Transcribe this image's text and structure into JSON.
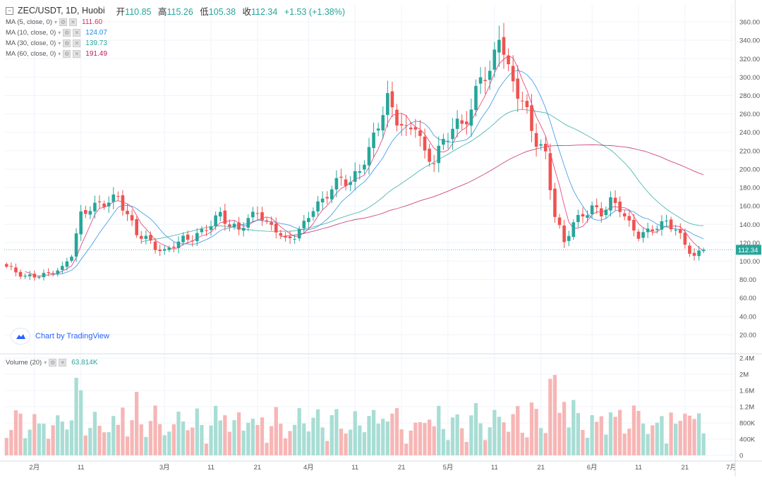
{
  "header": {
    "symbol": "ZEC/USDT, 1D, Huobi",
    "open_label": "开",
    "open": "110.85",
    "high_label": "高",
    "high": "115.26",
    "low_label": "低",
    "low": "105.38",
    "close_label": "收",
    "close": "112.34",
    "change": "+1.53 (+1.38%)"
  },
  "indicators": [
    {
      "label": "MA (5, close, 0)",
      "value": "111.60",
      "color": "#e91e63"
    },
    {
      "label": "MA (10, close, 0)",
      "value": "124.07",
      "color": "#1e88e5"
    },
    {
      "label": "MA (30, close, 0)",
      "value": "139.73",
      "color": "#26a69a"
    },
    {
      "label": "MA (60, close, 0)",
      "value": "191.49",
      "color": "#c2185b"
    }
  ],
  "volume_legend": {
    "label": "Volume (20)",
    "value": "63.814K",
    "color": "#26a69a"
  },
  "brand": {
    "text": "Chart by TradingView",
    "icon": "tradingview-cloud-icon"
  },
  "last_price_label": "112.34",
  "colors": {
    "up": "#26a69a",
    "down": "#ef5350",
    "up_volume": "#a8ddd4",
    "down_volume": "#f6b6b5",
    "last_price_bg": "#26a69a"
  },
  "chart_data": {
    "type": "candlestick",
    "price_axis": {
      "range": [
        10,
        370
      ],
      "ticks": [
        "360.00",
        "340.00",
        "320.00",
        "300.00",
        "280.00",
        "260.00",
        "240.00",
        "220.00",
        "200.00",
        "180.00",
        "160.00",
        "140.00",
        "120.00",
        "100.00",
        "80.00",
        "60.00",
        "40.00",
        "20.00"
      ]
    },
    "volume_axis": {
      "range": [
        0,
        2400000
      ],
      "ticks": [
        "2.4M",
        "2M",
        "1.6M",
        "1.2M",
        "800K",
        "400K",
        "0"
      ]
    },
    "x_axis_labels": [
      {
        "label": "2月",
        "day": 6
      },
      {
        "label": "11",
        "day": 16
      },
      {
        "label": "3月",
        "day": 34
      },
      {
        "label": "11",
        "day": 44
      },
      {
        "label": "21",
        "day": 54
      },
      {
        "label": "4月",
        "day": 65
      },
      {
        "label": "11",
        "day": 75
      },
      {
        "label": "21",
        "day": 85
      },
      {
        "label": "5月",
        "day": 95
      },
      {
        "label": "11",
        "day": 105
      },
      {
        "label": "21",
        "day": 115
      },
      {
        "label": "6月",
        "day": 126
      },
      {
        "label": "11",
        "day": 136
      },
      {
        "label": "21",
        "day": 146
      },
      {
        "label": "7月",
        "day": 156
      }
    ],
    "total_days": 157,
    "close_anchors": [
      [
        0,
        94
      ],
      [
        4,
        83
      ],
      [
        8,
        85
      ],
      [
        12,
        92
      ],
      [
        14,
        108
      ],
      [
        16,
        150
      ],
      [
        18,
        158
      ],
      [
        22,
        165
      ],
      [
        24,
        170
      ],
      [
        26,
        150
      ],
      [
        28,
        130
      ],
      [
        30,
        125
      ],
      [
        32,
        115
      ],
      [
        34,
        110
      ],
      [
        36,
        118
      ],
      [
        38,
        124
      ],
      [
        40,
        125
      ],
      [
        42,
        132
      ],
      [
        44,
        140
      ],
      [
        46,
        152
      ],
      [
        48,
        138
      ],
      [
        50,
        135
      ],
      [
        52,
        145
      ],
      [
        54,
        155
      ],
      [
        56,
        140
      ],
      [
        58,
        135
      ],
      [
        60,
        122
      ],
      [
        62,
        128
      ],
      [
        64,
        140
      ],
      [
        66,
        158
      ],
      [
        68,
        165
      ],
      [
        70,
        180
      ],
      [
        72,
        190
      ],
      [
        74,
        185
      ],
      [
        76,
        200
      ],
      [
        78,
        220
      ],
      [
        80,
        250
      ],
      [
        82,
        275
      ],
      [
        84,
        255
      ],
      [
        86,
        240
      ],
      [
        88,
        250
      ],
      [
        90,
        215
      ],
      [
        92,
        210
      ],
      [
        94,
        230
      ],
      [
        96,
        245
      ],
      [
        98,
        250
      ],
      [
        100,
        262
      ],
      [
        102,
        305
      ],
      [
        104,
        300
      ],
      [
        106,
        350
      ],
      [
        108,
        305
      ],
      [
        110,
        285
      ],
      [
        112,
        260
      ],
      [
        114,
        230
      ],
      [
        116,
        215
      ],
      [
        118,
        150
      ],
      [
        120,
        120
      ],
      [
        122,
        142
      ],
      [
        124,
        150
      ],
      [
        126,
        158
      ],
      [
        128,
        152
      ],
      [
        130,
        165
      ],
      [
        132,
        158
      ],
      [
        134,
        140
      ],
      [
        136,
        128
      ],
      [
        138,
        132
      ],
      [
        140,
        138
      ],
      [
        142,
        142
      ],
      [
        144,
        135
      ],
      [
        146,
        118
      ],
      [
        148,
        105
      ],
      [
        150,
        112.34
      ]
    ],
    "ma_lines": [
      {
        "name": "MA (5, close, 0)",
        "period": 5
      },
      {
        "name": "MA (10, close, 0)",
        "period": 10
      },
      {
        "name": "MA (30, close, 0)",
        "period": 30
      },
      {
        "name": "MA (60, close, 0)",
        "period": 60
      }
    ]
  }
}
